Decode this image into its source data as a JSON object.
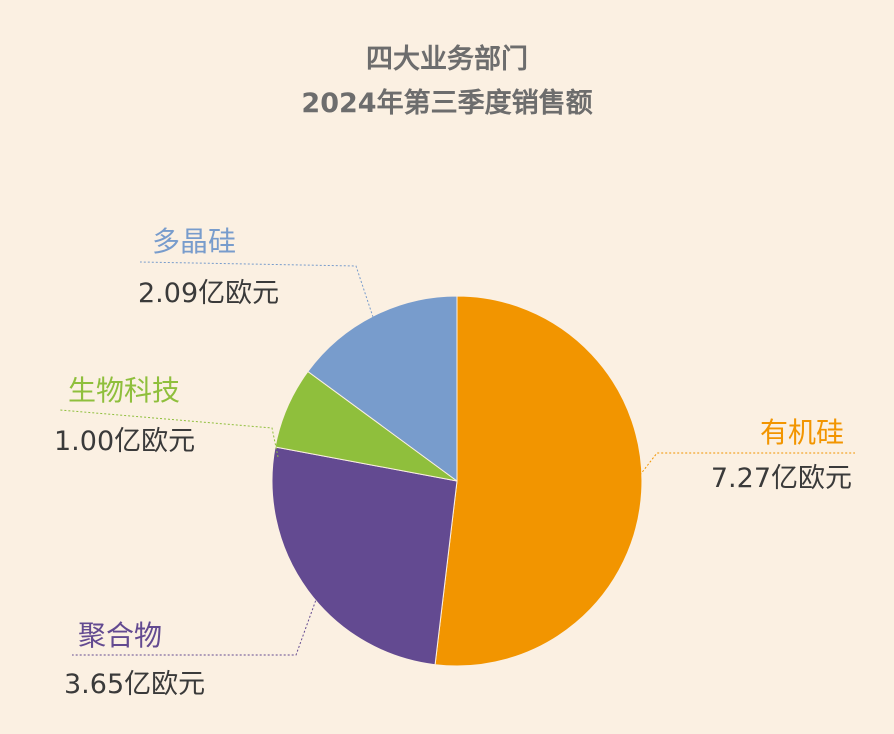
{
  "chart_data": {
    "type": "pie",
    "title": "四大业务部门",
    "subtitle": "2024年第三季度销售额",
    "unit": "亿欧元",
    "legend": "none",
    "slices": [
      {
        "label": "有机硅",
        "value": 7.27,
        "value_text": "7.27亿欧元",
        "color": "#f29500"
      },
      {
        "label": "聚合物",
        "value": 3.65,
        "value_text": "3.65亿欧元",
        "color": "#634a91"
      },
      {
        "label": "生物科技",
        "value": 1.0,
        "value_text": "1.00亿欧元",
        "color": "#8fbf3c"
      },
      {
        "label": "多晶硅",
        "value": 2.09,
        "value_text": "2.09亿欧元",
        "color": "#789ccc"
      }
    ],
    "value_text_color": "#3a3a3a",
    "leader_line_color": "#8a8a8a"
  }
}
